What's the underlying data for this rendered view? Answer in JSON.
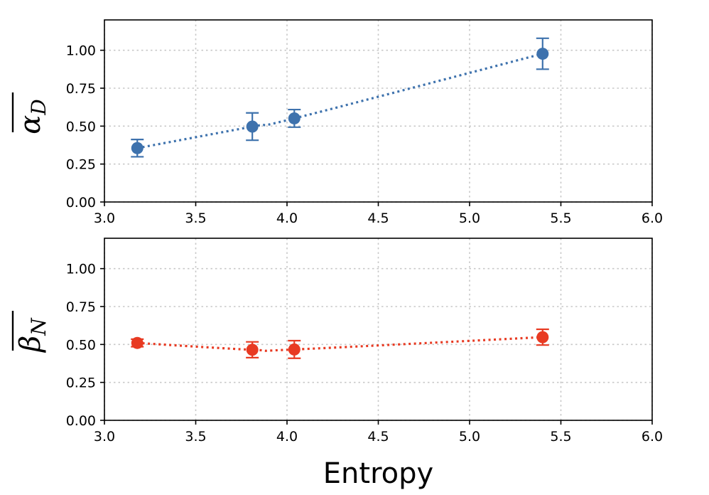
{
  "chart_data": [
    {
      "type": "line",
      "panel": "top",
      "x": [
        3.18,
        3.81,
        4.04,
        5.4
      ],
      "series": [
        {
          "name": "alpha_D",
          "color": "#3e72ad",
          "values": [
            0.355,
            0.497,
            0.551,
            0.977
          ],
          "err": [
            0.057,
            0.09,
            0.058,
            0.102
          ]
        }
      ],
      "xlim": [
        3.0,
        6.0
      ],
      "ylim": [
        0.0,
        1.2
      ],
      "xticks": [
        "3.0",
        "3.5",
        "4.0",
        "4.5",
        "5.0",
        "5.5",
        "6.0"
      ],
      "yticks": [
        "0.00",
        "0.25",
        "0.50",
        "0.75",
        "1.00"
      ],
      "ylabel": "α",
      "ylabel_sub": "D",
      "xlabel": "",
      "grid": true,
      "line_style": "dotted"
    },
    {
      "type": "line",
      "panel": "bottom",
      "x": [
        3.18,
        3.81,
        4.04,
        5.4
      ],
      "series": [
        {
          "name": "beta_N",
          "color": "#e83a22",
          "values": [
            0.51,
            0.465,
            0.467,
            0.548
          ],
          "err": [
            0.025,
            0.052,
            0.058,
            0.052
          ]
        }
      ],
      "xlim": [
        3.0,
        6.0
      ],
      "ylim": [
        0.0,
        1.2
      ],
      "xticks": [
        "3.0",
        "3.5",
        "4.0",
        "4.5",
        "5.0",
        "5.5",
        "6.0"
      ],
      "yticks": [
        "0.00",
        "0.25",
        "0.50",
        "0.75",
        "1.00"
      ],
      "ylabel": "β",
      "ylabel_sub": "N",
      "xlabel": "Entropy",
      "grid": true,
      "line_style": "dotted"
    }
  ]
}
